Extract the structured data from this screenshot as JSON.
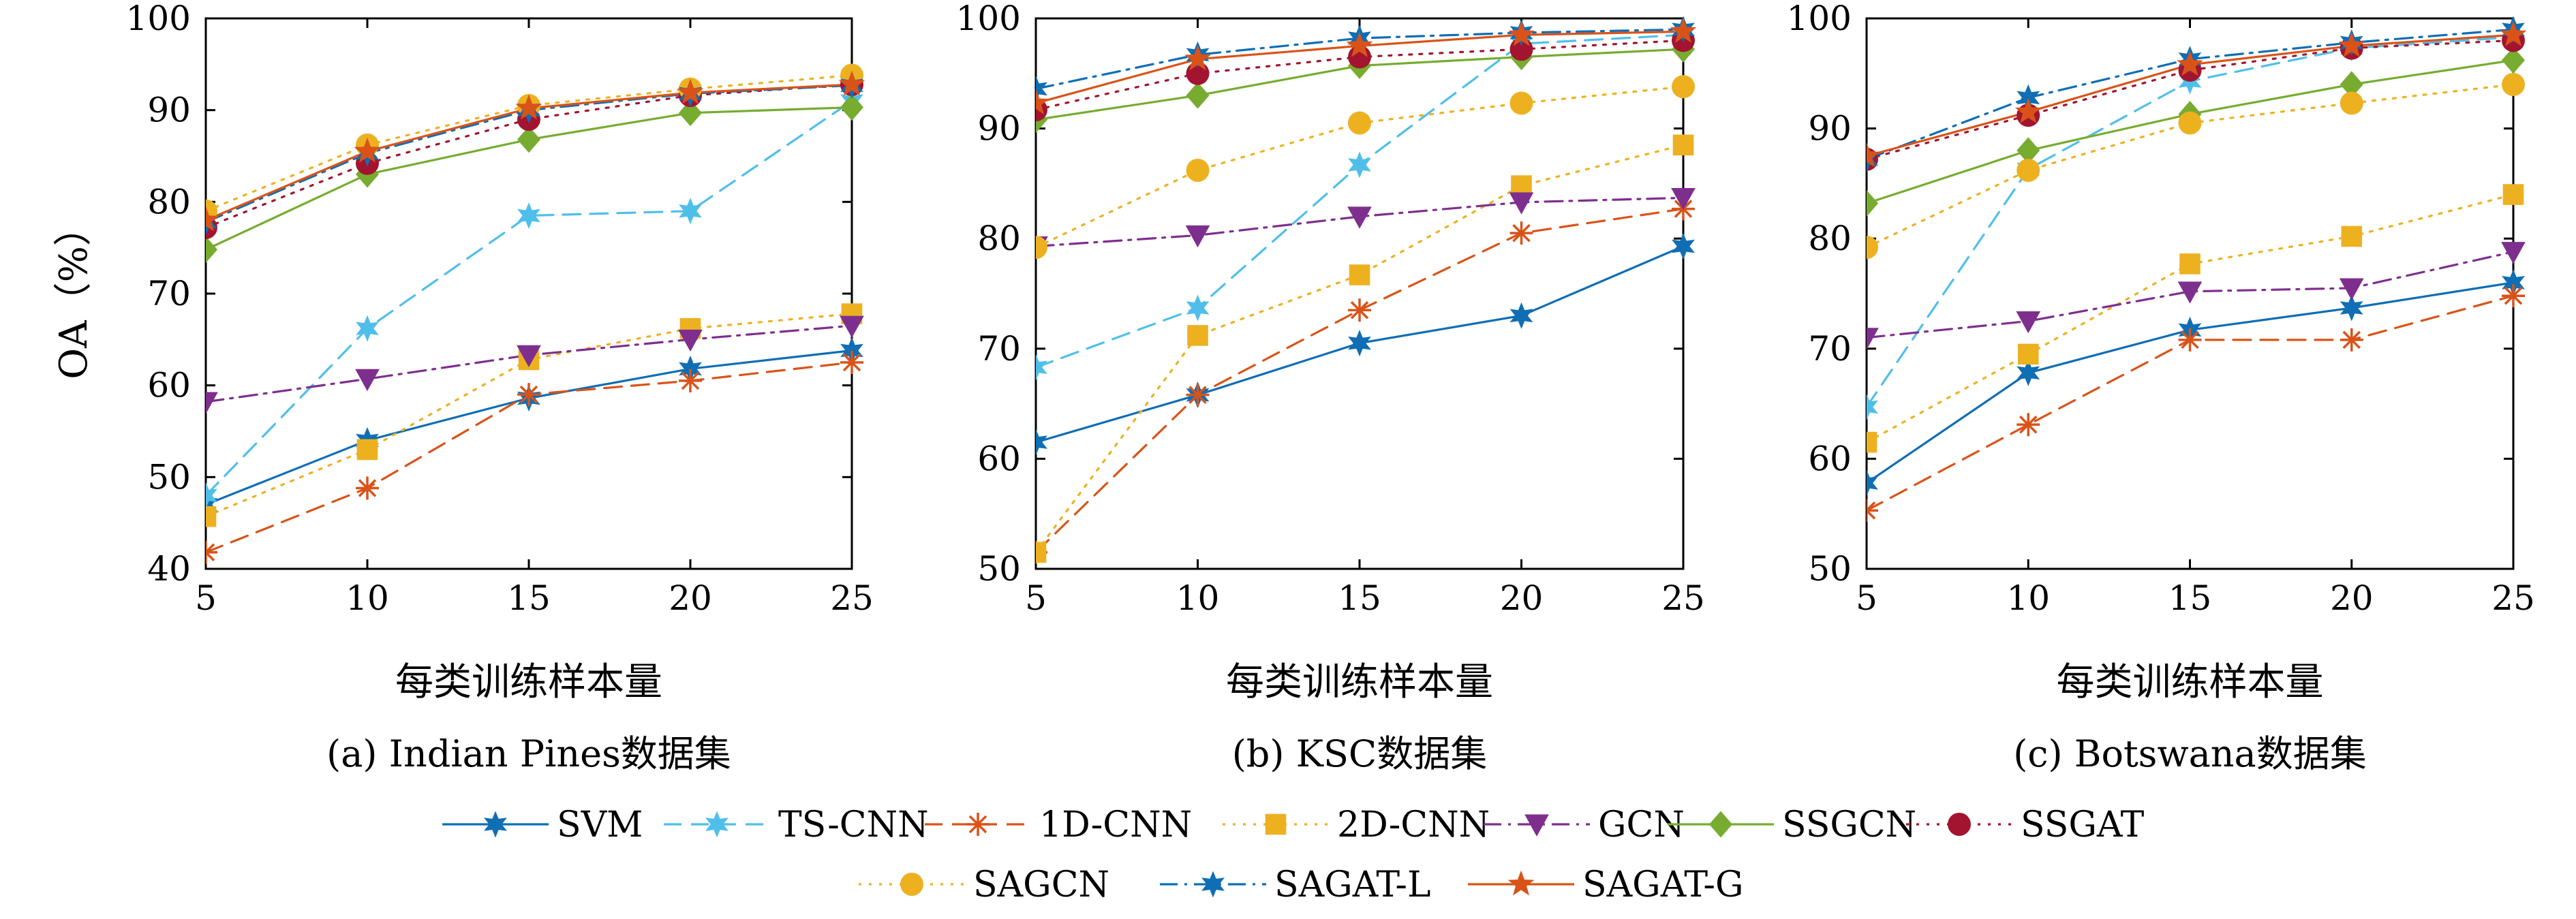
{
  "colors": {
    "SVM": "#0f6eb4",
    "TS-CNN": "#4fbfea",
    "1D-CNN": "#d95319",
    "2D-CNN": "#edb120",
    "GCN": "#7e2f8e",
    "SSGCN": "#77ac30",
    "SSGAT": "#a2142f",
    "SAGCN": "#edb120",
    "SAGAT-L": "#0f6eb4",
    "SAGAT-G": "#d95319"
  },
  "legend": [
    {
      "name": "SVM",
      "marker": "star6",
      "dash": "solid"
    },
    {
      "name": "TS-CNN",
      "marker": "star6",
      "dash": "dash"
    },
    {
      "name": "1D-CNN",
      "marker": "asterisk",
      "dash": "dash"
    },
    {
      "name": "2D-CNN",
      "marker": "square",
      "dash": "dot"
    },
    {
      "name": "GCN",
      "marker": "triangle-down",
      "dash": "dashdot"
    },
    {
      "name": "SSGCN",
      "marker": "diamond",
      "dash": "solid"
    },
    {
      "name": "SSGAT",
      "marker": "circle",
      "dash": "dot"
    },
    {
      "name": "SAGCN",
      "marker": "circle",
      "dash": "dot"
    },
    {
      "name": "SAGAT-L",
      "marker": "star6",
      "dash": "dashdot"
    },
    {
      "name": "SAGAT-G",
      "marker": "star5",
      "dash": "solid"
    }
  ],
  "chart_data": [
    {
      "type": "line",
      "caption": "(a) Indian Pines数据集",
      "xlabel": "每类训练样本量",
      "ylabel": "OA（%）",
      "x": [
        5,
        10,
        15,
        20,
        25
      ],
      "xticks": [
        "5",
        "10",
        "15",
        "20",
        "25"
      ],
      "ylim": [
        40,
        100
      ],
      "yticks": [
        "40",
        "50",
        "60",
        "70",
        "80",
        "90",
        "100"
      ],
      "series": [
        {
          "name": "SVM",
          "values": [
            47,
            54,
            58.6,
            61.8,
            63.8
          ]
        },
        {
          "name": "TS-CNN",
          "values": [
            48,
            66.2,
            78.5,
            79,
            91
          ]
        },
        {
          "name": "1D-CNN",
          "values": [
            41.8,
            48.8,
            59,
            60.5,
            62.5
          ]
        },
        {
          "name": "2D-CNN",
          "values": [
            45.7,
            53,
            62.8,
            66.2,
            67.8
          ]
        },
        {
          "name": "GCN",
          "values": [
            58.2,
            60.7,
            63.3,
            65,
            66.5
          ]
        },
        {
          "name": "SSGCN",
          "values": [
            74.8,
            83,
            86.8,
            89.7,
            90.3
          ]
        },
        {
          "name": "SSGAT",
          "values": [
            77.2,
            84.2,
            89,
            91.6,
            92.8
          ]
        },
        {
          "name": "SAGCN",
          "values": [
            79,
            86.2,
            90.5,
            92.3,
            93.8
          ]
        },
        {
          "name": "SAGAT-L",
          "values": [
            77.8,
            85.3,
            90,
            91.8,
            92.7
          ]
        },
        {
          "name": "SAGAT-G",
          "values": [
            78,
            85.5,
            90.2,
            91.9,
            92.8
          ]
        }
      ]
    },
    {
      "type": "line",
      "caption": "(b) KSC数据集",
      "xlabel": "每类训练样本量",
      "ylabel": "",
      "x": [
        5,
        10,
        15,
        20,
        25
      ],
      "xticks": [
        "5",
        "10",
        "15",
        "20",
        "25"
      ],
      "ylim": [
        50,
        100
      ],
      "yticks": [
        "50",
        "60",
        "70",
        "80",
        "90",
        "100"
      ],
      "series": [
        {
          "name": "SVM",
          "values": [
            61.5,
            65.8,
            70.5,
            73,
            79.3
          ]
        },
        {
          "name": "TS-CNN",
          "values": [
            68.3,
            73.7,
            86.7,
            97.7,
            98.5
          ]
        },
        {
          "name": "1D-CNN",
          "values": [
            51.5,
            65.8,
            73.5,
            80.5,
            82.7
          ]
        },
        {
          "name": "2D-CNN",
          "values": [
            51.5,
            71.2,
            76.7,
            84.8,
            88.5
          ]
        },
        {
          "name": "GCN",
          "values": [
            79.3,
            80.3,
            82,
            83.3,
            83.7
          ]
        },
        {
          "name": "SSGCN",
          "values": [
            90.8,
            93,
            95.7,
            96.5,
            97.2
          ]
        },
        {
          "name": "SSGAT",
          "values": [
            91.7,
            95,
            96.5,
            97.2,
            98
          ]
        },
        {
          "name": "SAGCN",
          "values": [
            79.2,
            86.2,
            90.5,
            92.3,
            93.8
          ]
        },
        {
          "name": "SAGAT-L",
          "values": [
            93.6,
            96.7,
            98.2,
            98.7,
            99
          ]
        },
        {
          "name": "SAGAT-G",
          "values": [
            92.3,
            96.3,
            97.5,
            98.5,
            98.8
          ]
        }
      ]
    },
    {
      "type": "line",
      "caption": "(c) Botswana数据集",
      "xlabel": "每类训练样本量",
      "ylabel": "",
      "x": [
        5,
        10,
        15,
        20,
        25
      ],
      "xticks": [
        "5",
        "10",
        "15",
        "20",
        "25"
      ],
      "ylim": [
        50,
        100
      ],
      "yticks": [
        "50",
        "60",
        "70",
        "80",
        "90",
        "100"
      ],
      "series": [
        {
          "name": "SVM",
          "values": [
            57.8,
            67.8,
            71.7,
            73.7,
            76
          ]
        },
        {
          "name": "TS-CNN",
          "values": [
            64.7,
            86.3,
            94.3,
            97.3,
            98.3
          ]
        },
        {
          "name": "1D-CNN",
          "values": [
            55.3,
            63.1,
            70.8,
            70.8,
            74.8
          ]
        },
        {
          "name": "2D-CNN",
          "values": [
            61.5,
            69.5,
            77.7,
            80.2,
            84
          ]
        },
        {
          "name": "GCN",
          "values": [
            71,
            72.5,
            75.2,
            75.5,
            78.8
          ]
        },
        {
          "name": "SSGCN",
          "values": [
            83.2,
            88,
            91.3,
            94,
            96.2
          ]
        },
        {
          "name": "SSGAT",
          "values": [
            87.2,
            91.2,
            95.3,
            97.3,
            98
          ]
        },
        {
          "name": "SAGCN",
          "values": [
            79.2,
            86.2,
            90.5,
            92.3,
            94
          ]
        },
        {
          "name": "SAGAT-L",
          "values": [
            87.2,
            92.8,
            96.3,
            97.8,
            99
          ]
        },
        {
          "name": "SAGAT-G",
          "values": [
            87.5,
            91.5,
            95.8,
            97.5,
            98.5
          ]
        }
      ]
    }
  ]
}
